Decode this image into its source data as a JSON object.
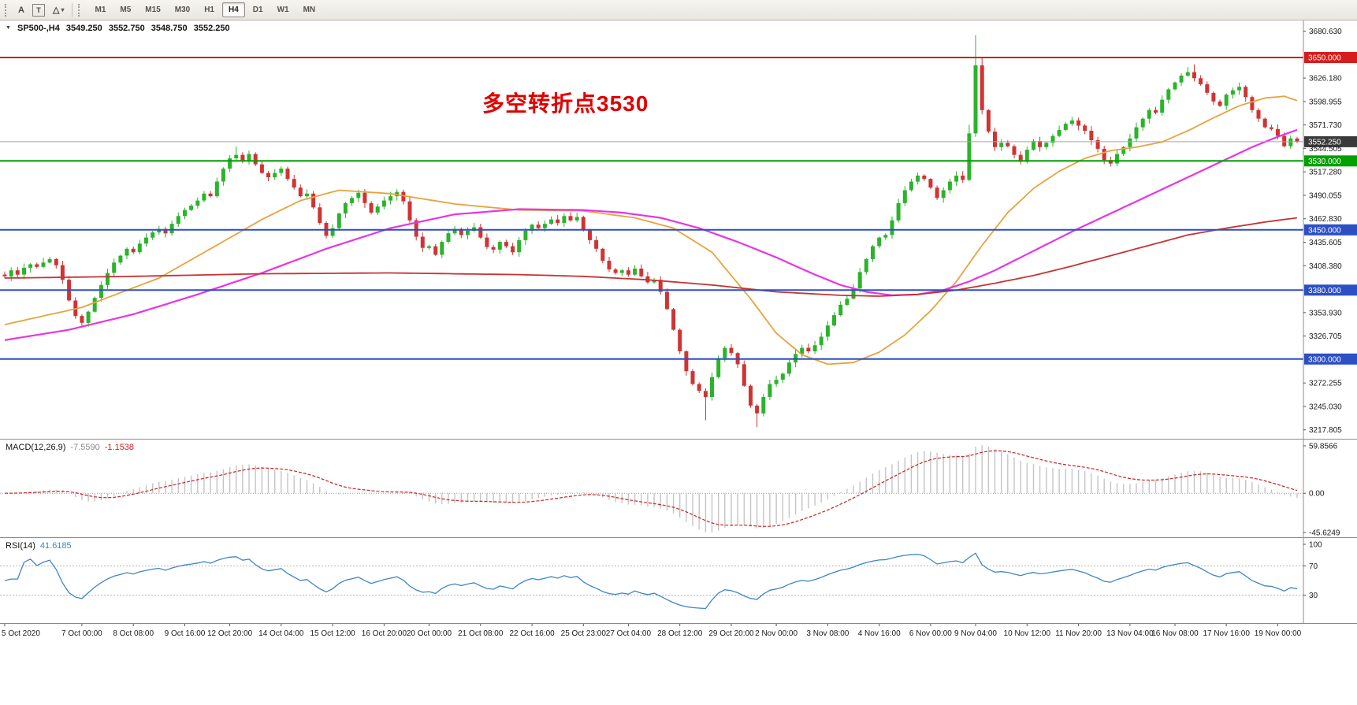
{
  "toolbar": {
    "text_tool_label": "A",
    "text_label_tool": "T",
    "shapes_icon": "△",
    "caret": "▾",
    "timeframes": [
      "M1",
      "M5",
      "M15",
      "M30",
      "H1",
      "H4",
      "D1",
      "W1",
      "MN"
    ],
    "active": "H4"
  },
  "chart": {
    "marker": "▼",
    "symbol_period": "SP500-,H4",
    "ohlc": {
      "open": "3549.250",
      "high": "3552.750",
      "low": "3548.750",
      "close": "3552.250"
    },
    "annotation": "多空转折点3530"
  },
  "indicators": {
    "macd": {
      "label": "MACD(12,26,9)",
      "value_main": "-7.5590",
      "value_signal": "-1.1538",
      "axis_max": "59.8566",
      "axis_zero": "0.00",
      "axis_min": "-45.6249"
    },
    "rsi": {
      "label": "RSI(14)",
      "value": "41.6185",
      "axis": [
        "100",
        "70",
        "30"
      ]
    }
  },
  "chart_data": {
    "type": "candlestick",
    "symbol": "SP500-",
    "timeframe": "H4",
    "up_color": "#2bb32b",
    "down_color": "#d03333",
    "price_range": [
      3207.5,
      3693
    ],
    "open_first": 3398,
    "closes": [
      3396,
      3403,
      3398,
      3406,
      3410,
      3407,
      3412,
      3416,
      3409,
      3392,
      3368,
      3350,
      3342,
      3355,
      3371,
      3386,
      3400,
      3412,
      3420,
      3428,
      3424,
      3434,
      3441,
      3447,
      3451,
      3446,
      3457,
      3466,
      3473,
      3478,
      3484,
      3492,
      3489,
      3506,
      3521,
      3533,
      3537,
      3530,
      3538,
      3526,
      3516,
      3511,
      3516,
      3521,
      3509,
      3499,
      3489,
      3492,
      3476,
      3458,
      3443,
      3452,
      3469,
      3481,
      3487,
      3493,
      3481,
      3470,
      3477,
      3484,
      3489,
      3494,
      3483,
      3461,
      3442,
      3429,
      3431,
      3421,
      3436,
      3446,
      3451,
      3444,
      3449,
      3453,
      3441,
      3430,
      3427,
      3436,
      3431,
      3424,
      3438,
      3449,
      3456,
      3452,
      3457,
      3462,
      3458,
      3466,
      3461,
      3465,
      3450,
      3438,
      3428,
      3414,
      3404,
      3400,
      3403,
      3398,
      3405,
      3396,
      3389,
      3392,
      3378,
      3358,
      3334,
      3309,
      3286,
      3271,
      3263,
      3256,
      3279,
      3301,
      3313,
      3307,
      3294,
      3269,
      3246,
      3237,
      3256,
      3271,
      3276,
      3283,
      3296,
      3306,
      3313,
      3309,
      3316,
      3326,
      3339,
      3351,
      3363,
      3370,
      3382,
      3401,
      3416,
      3431,
      3441,
      3444,
      3461,
      3481,
      3496,
      3506,
      3513,
      3509,
      3499,
      3487,
      3496,
      3506,
      3513,
      3508,
      3562,
      3641,
      3589,
      3564,
      3546,
      3551,
      3547,
      3537,
      3529,
      3543,
      3553,
      3546,
      3551,
      3559,
      3566,
      3573,
      3577,
      3571,
      3565,
      3554,
      3544,
      3531,
      3527,
      3538,
      3546,
      3556,
      3569,
      3579,
      3589,
      3586,
      3601,
      3613,
      3621,
      3629,
      3633,
      3626,
      3619,
      3609,
      3599,
      3594,
      3607,
      3612,
      3616,
      3604,
      3589,
      3579,
      3569,
      3567,
      3559,
      3547,
      3556,
      3552.25
    ],
    "wick_overrides": {
      "36": [
        3547,
        null
      ],
      "109": [
        null,
        3229
      ],
      "117": [
        null,
        3221
      ],
      "150": [
        3572,
        null
      ],
      "151": [
        3676,
        3558
      ],
      "152": [
        3650,
        3584
      ],
      "184": [
        3639,
        null
      ],
      "185": [
        3642,
        null
      ]
    },
    "moving_averages": [
      {
        "name": "ma-fast",
        "color": "#e8a33d",
        "width": 1.8,
        "anchors": [
          [
            0,
            3340
          ],
          [
            12,
            3360
          ],
          [
            24,
            3394
          ],
          [
            32,
            3428
          ],
          [
            40,
            3462
          ],
          [
            46,
            3484
          ],
          [
            52,
            3496
          ],
          [
            60,
            3492
          ],
          [
            70,
            3480
          ],
          [
            80,
            3473
          ],
          [
            90,
            3472
          ],
          [
            98,
            3464
          ],
          [
            104,
            3452
          ],
          [
            110,
            3424
          ],
          [
            116,
            3370
          ],
          [
            120,
            3330
          ],
          [
            124,
            3305
          ],
          [
            128,
            3294
          ],
          [
            132,
            3296
          ],
          [
            136,
            3308
          ],
          [
            140,
            3328
          ],
          [
            144,
            3356
          ],
          [
            148,
            3390
          ],
          [
            152,
            3432
          ],
          [
            156,
            3470
          ],
          [
            160,
            3498
          ],
          [
            164,
            3518
          ],
          [
            168,
            3533
          ],
          [
            172,
            3542
          ],
          [
            176,
            3546
          ],
          [
            180,
            3552
          ],
          [
            184,
            3565
          ],
          [
            188,
            3580
          ],
          [
            192,
            3594
          ],
          [
            196,
            3603
          ],
          [
            199,
            3605
          ],
          [
            201,
            3600
          ]
        ]
      },
      {
        "name": "ma-medium",
        "color": "#e535e5",
        "width": 2.2,
        "anchors": [
          [
            0,
            3322
          ],
          [
            10,
            3334
          ],
          [
            20,
            3352
          ],
          [
            30,
            3375
          ],
          [
            40,
            3400
          ],
          [
            50,
            3428
          ],
          [
            60,
            3452
          ],
          [
            70,
            3468
          ],
          [
            80,
            3474
          ],
          [
            90,
            3473
          ],
          [
            96,
            3470
          ],
          [
            102,
            3464
          ],
          [
            108,
            3452
          ],
          [
            114,
            3436
          ],
          [
            120,
            3418
          ],
          [
            126,
            3398
          ],
          [
            130,
            3386
          ],
          [
            134,
            3378
          ],
          [
            138,
            3374
          ],
          [
            142,
            3375
          ],
          [
            146,
            3380
          ],
          [
            150,
            3390
          ],
          [
            154,
            3403
          ],
          [
            158,
            3418
          ],
          [
            162,
            3433
          ],
          [
            166,
            3448
          ],
          [
            170,
            3462
          ],
          [
            174,
            3476
          ],
          [
            178,
            3490
          ],
          [
            182,
            3504
          ],
          [
            186,
            3518
          ],
          [
            190,
            3532
          ],
          [
            194,
            3546
          ],
          [
            198,
            3558
          ],
          [
            201,
            3566
          ]
        ]
      },
      {
        "name": "ma-slow",
        "color": "#c83232",
        "width": 1.8,
        "anchors": [
          [
            0,
            3394
          ],
          [
            20,
            3396
          ],
          [
            40,
            3399
          ],
          [
            60,
            3400
          ],
          [
            80,
            3398
          ],
          [
            90,
            3396
          ],
          [
            100,
            3392
          ],
          [
            110,
            3386
          ],
          [
            120,
            3378
          ],
          [
            130,
            3374
          ],
          [
            136,
            3373
          ],
          [
            142,
            3375
          ],
          [
            148,
            3380
          ],
          [
            154,
            3388
          ],
          [
            160,
            3397
          ],
          [
            166,
            3408
          ],
          [
            172,
            3420
          ],
          [
            178,
            3432
          ],
          [
            184,
            3444
          ],
          [
            190,
            3452
          ],
          [
            196,
            3459
          ],
          [
            201,
            3464
          ]
        ]
      }
    ],
    "levels": [
      {
        "price": 3650.0,
        "color": "#d61c1c",
        "label": "3650.000"
      },
      {
        "price": 3530.0,
        "color": "#00a000",
        "label": "3530.000"
      },
      {
        "price": 3450.0,
        "color": "#2d4fc4",
        "label": "3450.000"
      },
      {
        "price": 3380.0,
        "color": "#2d4fc4",
        "label": "3380.000"
      },
      {
        "price": 3300.0,
        "color": "#2d4fc4",
        "label": "3300.000"
      }
    ],
    "current_price": {
      "price": 3552.25,
      "label": "3552.250",
      "line_color": "#a6a6a6",
      "tag_color": "#3a3a3a"
    },
    "price_axis": [
      {
        "label": "3680.630",
        "price": 3680.63
      },
      {
        "label": "3650.000",
        "price": 3650.0,
        "bg": "#d61c1c"
      },
      {
        "label": "3626.180",
        "price": 3626.18
      },
      {
        "label": "3598.955",
        "price": 3598.955
      },
      {
        "label": "3571.730",
        "price": 3571.73
      },
      {
        "label": "3552.250",
        "price": 3552.25,
        "bg": "#3a3a3a"
      },
      {
        "label": "3544.505",
        "price": 3544.505
      },
      {
        "label": "3530.000",
        "price": 3530.0,
        "bg": "#00a000"
      },
      {
        "label": "3517.280",
        "price": 3517.28
      },
      {
        "label": "3490.055",
        "price": 3490.055
      },
      {
        "label": "3462.830",
        "price": 3462.83
      },
      {
        "label": "3450.000",
        "price": 3450.0,
        "bg": "#2d4fc4"
      },
      {
        "label": "3435.605",
        "price": 3435.605
      },
      {
        "label": "3408.380",
        "price": 3408.38
      },
      {
        "label": "3380.000",
        "price": 3380.0,
        "bg": "#2d4fc4"
      },
      {
        "label": "3353.930",
        "price": 3353.93
      },
      {
        "label": "3326.705",
        "price": 3326.705
      },
      {
        "label": "3300.000",
        "price": 3300.0,
        "bg": "#2d4fc4"
      },
      {
        "label": "3272.255",
        "price": 3272.255
      },
      {
        "label": "3245.030",
        "price": 3245.03
      },
      {
        "label": "3217.805",
        "price": 3217.805
      }
    ],
    "macd": {
      "fast": 12,
      "slow": 26,
      "signal": 9,
      "histogram_color": "#c4c4c4",
      "signal_color": "#cc2222"
    },
    "rsi": {
      "period": 14,
      "color": "#3d85c8",
      "levels": [
        70,
        30
      ]
    },
    "time_labels": [
      {
        "text": "5 Oct 2020",
        "bar": 0
      },
      {
        "text": "7 Oct 00:00",
        "bar": 12
      },
      {
        "text": "8 Oct 08:00",
        "bar": 20
      },
      {
        "text": "9 Oct 16:00",
        "bar": 28
      },
      {
        "text": "12 Oct 20:00",
        "bar": 35
      },
      {
        "text": "14 Oct 04:00",
        "bar": 43
      },
      {
        "text": "15 Oct 12:00",
        "bar": 51
      },
      {
        "text": "16 Oct 20:00",
        "bar": 59
      },
      {
        "text": "20 Oct 00:00",
        "bar": 66
      },
      {
        "text": "21 Oct 08:00",
        "bar": 74
      },
      {
        "text": "22 Oct 16:00",
        "bar": 82
      },
      {
        "text": "25 Oct 23:00",
        "bar": 90
      },
      {
        "text": "27 Oct 04:00",
        "bar": 97
      },
      {
        "text": "28 Oct 12:00",
        "bar": 105
      },
      {
        "text": "29 Oct 20:00",
        "bar": 113
      },
      {
        "text": "2 Nov 00:00",
        "bar": 120
      },
      {
        "text": "3 Nov 08:00",
        "bar": 128
      },
      {
        "text": "4 Nov 16:00",
        "bar": 136
      },
      {
        "text": "6 Nov 00:00",
        "bar": 144
      },
      {
        "text": "9 Nov 04:00",
        "bar": 151
      },
      {
        "text": "10 Nov 12:00",
        "bar": 159
      },
      {
        "text": "11 Nov 20:00",
        "bar": 167
      },
      {
        "text": "13 Nov 04:00",
        "bar": 175
      },
      {
        "text": "16 Nov 08:00",
        "bar": 182
      },
      {
        "text": "17 Nov 16:00",
        "bar": 190
      },
      {
        "text": "19 Nov 00:00",
        "bar": 198
      }
    ]
  }
}
